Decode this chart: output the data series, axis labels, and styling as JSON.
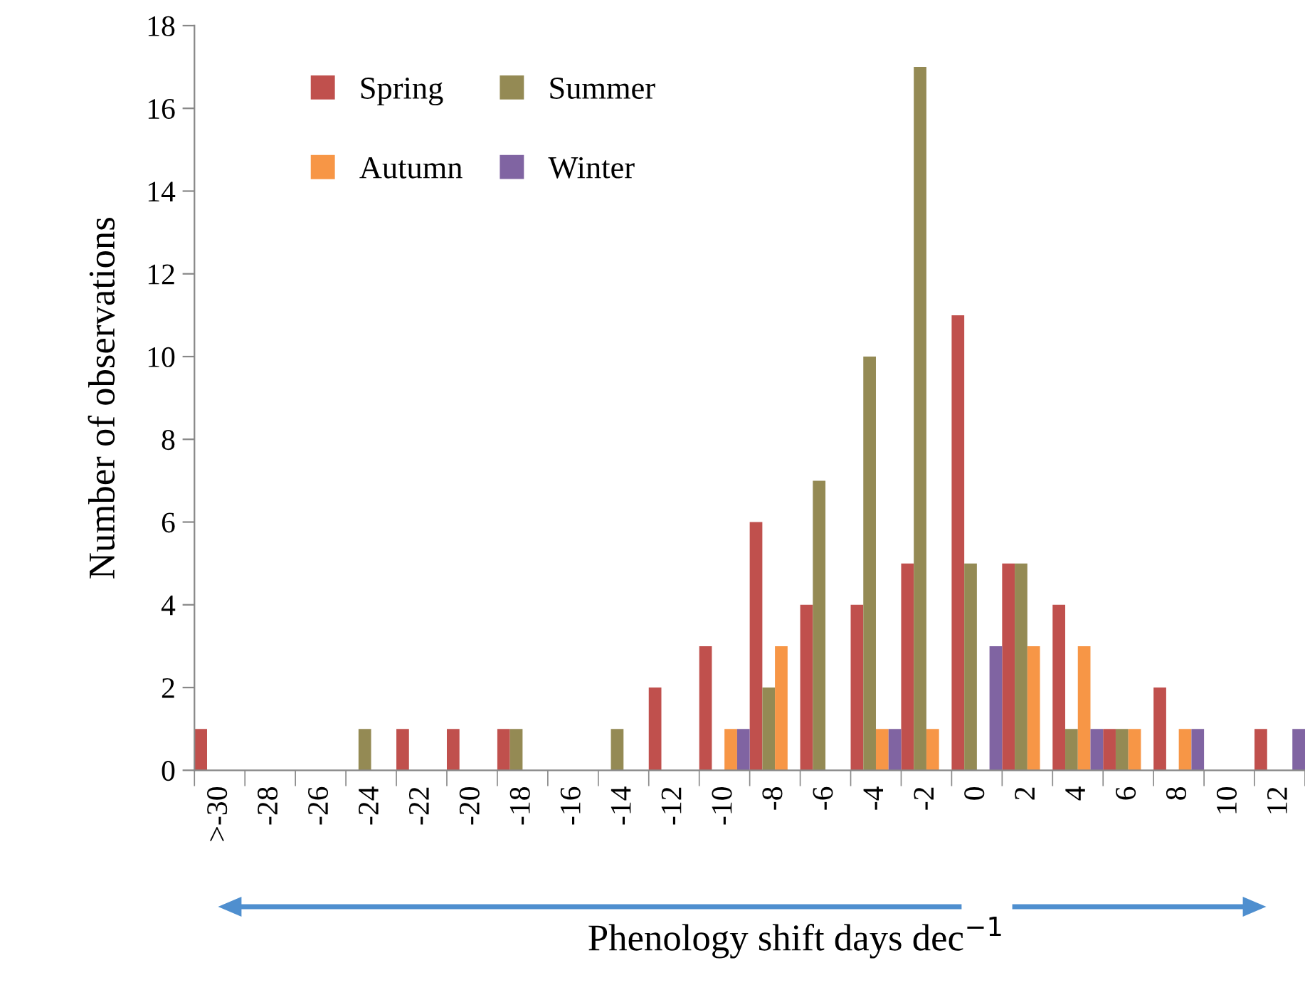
{
  "chart_data": {
    "type": "bar",
    "xlabel": "Phenology shift days dec$^{−1}$",
    "ylabel": "Number of observations",
    "categories": [
      ">-30",
      "-28",
      "-26",
      "-24",
      "-22",
      "-20",
      "-18",
      "-16",
      "-14",
      "-12",
      "-10",
      "-8",
      "-6",
      "-4",
      "-2",
      "0",
      "2",
      "4",
      "6",
      "8",
      "10",
      "12"
    ],
    "series": [
      {
        "name": "Spring",
        "color": "#c0504d",
        "values": [
          1,
          0,
          0,
          0,
          1,
          1,
          1,
          0,
          0,
          2,
          3,
          6,
          4,
          4,
          5,
          11,
          5,
          4,
          1,
          2,
          0,
          1
        ]
      },
      {
        "name": "Summer",
        "color": "#948a54",
        "values": [
          0,
          0,
          0,
          1,
          0,
          0,
          1,
          0,
          1,
          0,
          0,
          2,
          7,
          10,
          17,
          5,
          5,
          1,
          1,
          0,
          0,
          0
        ]
      },
      {
        "name": "Autumn",
        "color": "#f79646",
        "values": [
          0,
          0,
          0,
          0,
          0,
          0,
          0,
          0,
          0,
          0,
          1,
          3,
          0,
          1,
          1,
          0,
          3,
          3,
          1,
          1,
          0,
          0
        ]
      },
      {
        "name": "Winter",
        "color": "#8064a2",
        "values": [
          0,
          0,
          0,
          0,
          0,
          0,
          0,
          0,
          0,
          0,
          1,
          0,
          0,
          1,
          0,
          3,
          0,
          1,
          0,
          1,
          0,
          1
        ]
      }
    ],
    "ylim": [
      0,
      18
    ],
    "yticks": [
      0,
      2,
      4,
      6,
      8,
      10,
      12,
      14,
      16,
      18
    ],
    "grid": false,
    "legend": "top left"
  }
}
